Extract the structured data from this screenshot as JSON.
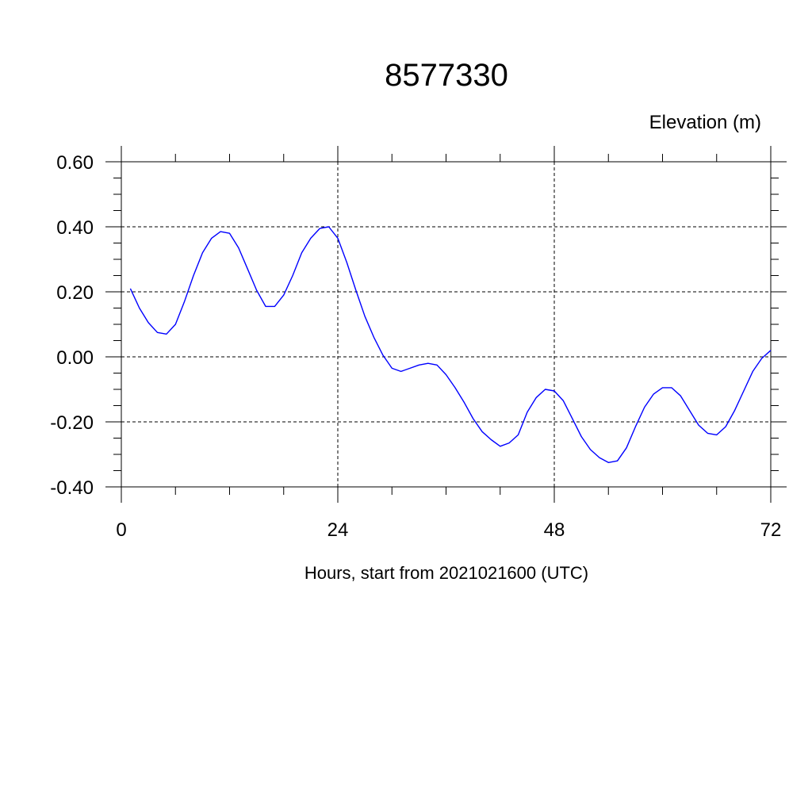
{
  "chart_data": {
    "type": "line",
    "title": "8577330",
    "ylabel": "Elevation (m)",
    "xlabel": "Hours, start from 2021021600 (UTC)",
    "xlim": [
      0,
      72
    ],
    "ylim": [
      -0.4,
      0.6
    ],
    "xticks": [
      0,
      24,
      48,
      72
    ],
    "xtick_labels": [
      "0",
      "24",
      "48",
      "72"
    ],
    "yticks": [
      -0.4,
      -0.2,
      0.0,
      0.2,
      0.4,
      0.6
    ],
    "ytick_labels": [
      "-0.40",
      "-0.20",
      "0.00",
      "0.20",
      "0.40",
      "0.60"
    ],
    "grid": true,
    "series": [
      {
        "color": "#0000ff",
        "x": [
          1,
          2,
          3,
          4,
          5,
          6,
          7,
          8,
          9,
          10,
          11,
          12,
          13,
          14,
          15,
          16,
          17,
          18,
          19,
          20,
          21,
          22,
          23,
          24,
          25,
          26,
          27,
          28,
          29,
          30,
          31,
          32,
          33,
          34,
          35,
          36,
          37,
          38,
          39,
          40,
          41,
          42,
          43,
          44,
          45,
          46,
          47,
          48,
          49,
          50,
          51,
          52,
          53,
          54,
          55,
          56,
          57,
          58,
          59,
          60,
          61,
          62,
          63,
          64,
          65,
          66,
          67,
          68,
          69,
          70,
          71,
          72
        ],
        "values": [
          0.21,
          0.15,
          0.105,
          0.075,
          0.07,
          0.1,
          0.17,
          0.25,
          0.32,
          0.365,
          0.385,
          0.38,
          0.335,
          0.27,
          0.205,
          0.155,
          0.155,
          0.19,
          0.25,
          0.32,
          0.365,
          0.395,
          0.4,
          0.365,
          0.29,
          0.205,
          0.125,
          0.06,
          0.005,
          -0.035,
          -0.045,
          -0.035,
          -0.025,
          -0.02,
          -0.025,
          -0.055,
          -0.095,
          -0.14,
          -0.19,
          -0.23,
          -0.255,
          -0.275,
          -0.265,
          -0.24,
          -0.17,
          -0.125,
          -0.1,
          -0.105,
          -0.135,
          -0.19,
          -0.245,
          -0.285,
          -0.31,
          -0.325,
          -0.32,
          -0.28,
          -0.215,
          -0.155,
          -0.115,
          -0.095,
          -0.095,
          -0.12,
          -0.165,
          -0.21,
          -0.235,
          -0.24,
          -0.215,
          -0.165,
          -0.105,
          -0.045,
          -0.005,
          0.02
        ]
      }
    ]
  }
}
